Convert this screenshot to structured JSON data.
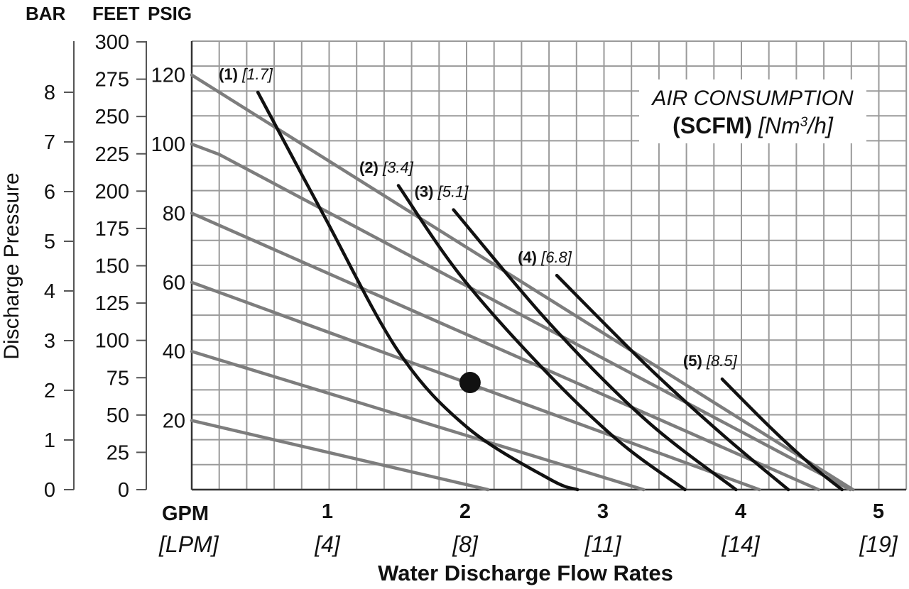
{
  "chart_data": {
    "type": "line",
    "axis_headers": {
      "bar": "BAR",
      "feet": "FEET",
      "psig": "PSIG"
    },
    "ylabel": "Discharge Pressure",
    "xlabel": "Water Discharge Flow Rates",
    "x_unit": "GPM",
    "x_unit_alt": "[LPM]",
    "x_ticks": [
      {
        "value": 1,
        "label": "1",
        "alt": "[4]"
      },
      {
        "value": 2,
        "label": "2",
        "alt": "[8]"
      },
      {
        "value": 3,
        "label": "3",
        "alt": "[11]"
      },
      {
        "value": 4,
        "label": "4",
        "alt": "[14]"
      },
      {
        "value": 5,
        "label": "5",
        "alt": "[19]"
      }
    ],
    "xlim": [
      0,
      5.2
    ],
    "ylim": [
      0,
      130
    ],
    "bar_ticks": [
      0,
      1,
      2,
      3,
      4,
      5,
      6,
      7,
      8
    ],
    "feet_ticks": [
      0,
      25,
      50,
      75,
      100,
      125,
      150,
      175,
      200,
      225,
      250,
      275,
      300
    ],
    "psig_ticks": [
      20,
      40,
      60,
      80,
      100,
      120
    ],
    "legend": {
      "line1": "AIR CONSUMPTION",
      "scfm": "(SCFM)",
      "unit_prefix": "[Nm",
      "unit_sup": "3",
      "unit_suffix": "/h]"
    },
    "pressure_series": [
      {
        "label": "120 psig",
        "x": [
          0,
          4.8
        ],
        "y": [
          120,
          0
        ]
      },
      {
        "label": "100 psig",
        "x": [
          0,
          0.2,
          4.78
        ],
        "y": [
          100,
          97,
          0
        ]
      },
      {
        "label": "80 psig",
        "x": [
          0,
          4.55
        ],
        "y": [
          80,
          0
        ]
      },
      {
        "label": "60 psig",
        "x": [
          0,
          4.12
        ],
        "y": [
          60,
          0
        ]
      },
      {
        "label": "40 psig",
        "x": [
          0,
          3.28
        ],
        "y": [
          40,
          0
        ]
      },
      {
        "label": "20 psig",
        "x": [
          0,
          2.15
        ],
        "y": [
          20,
          0
        ]
      }
    ],
    "air_series": [
      {
        "num": "(1)",
        "value": "[1.7]",
        "x": [
          0.48,
          0.95,
          1.5,
          2.0,
          2.6,
          2.8
        ],
        "y": [
          115,
          80,
          40,
          18,
          3,
          0
        ]
      },
      {
        "num": "(2)",
        "value": "[3.4]",
        "x": [
          1.5,
          1.95,
          2.55,
          3.1,
          3.58
        ],
        "y": [
          88,
          62,
          35,
          14,
          0
        ]
      },
      {
        "num": "(3)",
        "value": "[5.1]",
        "x": [
          1.9,
          2.6,
          3.3,
          3.95
        ],
        "y": [
          81,
          48,
          20,
          0
        ]
      },
      {
        "num": "(4)",
        "value": "[6.8]",
        "x": [
          2.65,
          3.3,
          3.85,
          4.33
        ],
        "y": [
          62,
          36,
          16,
          0
        ]
      },
      {
        "num": "(5)",
        "value": "[8.5]",
        "x": [
          3.85,
          4.2,
          4.5,
          4.72
        ],
        "y": [
          32,
          18,
          7,
          0
        ]
      }
    ],
    "marker": {
      "x": 2.02,
      "y": 31
    }
  }
}
